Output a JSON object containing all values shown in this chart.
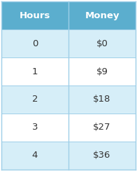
{
  "col_headers": [
    "Hours",
    "Money"
  ],
  "rows": [
    [
      "0",
      "$0"
    ],
    [
      "1",
      "$9"
    ],
    [
      "2",
      "$18"
    ],
    [
      "3",
      "$27"
    ],
    [
      "4",
      "$36"
    ]
  ],
  "header_bg": "#5BAECE",
  "header_text_color": "#ffffff",
  "row_bg_even": "#D6EEF8",
  "row_bg_odd": "#ffffff",
  "cell_text_color": "#333333",
  "border_color": "#9ECFE8",
  "outer_border_color": "#9ECFE8",
  "header_fontsize": 9.5,
  "cell_fontsize": 9.5,
  "fig_width": 1.96,
  "fig_height": 2.44,
  "dpi": 100
}
